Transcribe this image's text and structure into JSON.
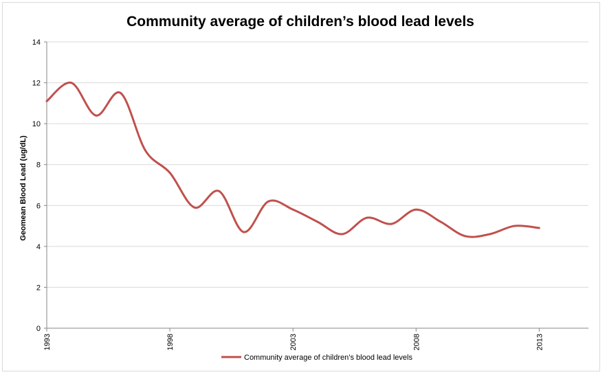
{
  "chart_data": {
    "type": "line",
    "title": "Community average of children’s blood lead levels",
    "xlabel": "",
    "ylabel": "Geomean Blood Lead  (ug/dL)",
    "xlim": [
      1993,
      2015
    ],
    "ylim": [
      0,
      14
    ],
    "y_ticks": [
      0,
      2,
      4,
      6,
      8,
      10,
      12,
      14
    ],
    "x_ticks": [
      1993,
      1998,
      2003,
      2008,
      2013
    ],
    "grid": "horizontal",
    "legend_position": "bottom",
    "series": [
      {
        "name": "Community  average of children’s blood lead levels",
        "color": "#c0504d",
        "x": [
          1993,
          1994,
          1995,
          1996,
          1997,
          1998,
          1999,
          2000,
          2001,
          2002,
          2003,
          2004,
          2005,
          2006,
          2007,
          2008,
          2009,
          2010,
          2011,
          2012,
          2013
        ],
        "y": [
          11.1,
          12.0,
          10.4,
          11.5,
          8.7,
          7.6,
          5.9,
          6.7,
          4.7,
          6.2,
          5.8,
          5.2,
          4.6,
          5.4,
          5.1,
          5.8,
          5.2,
          4.5,
          4.6,
          5.0,
          4.9
        ]
      }
    ]
  }
}
